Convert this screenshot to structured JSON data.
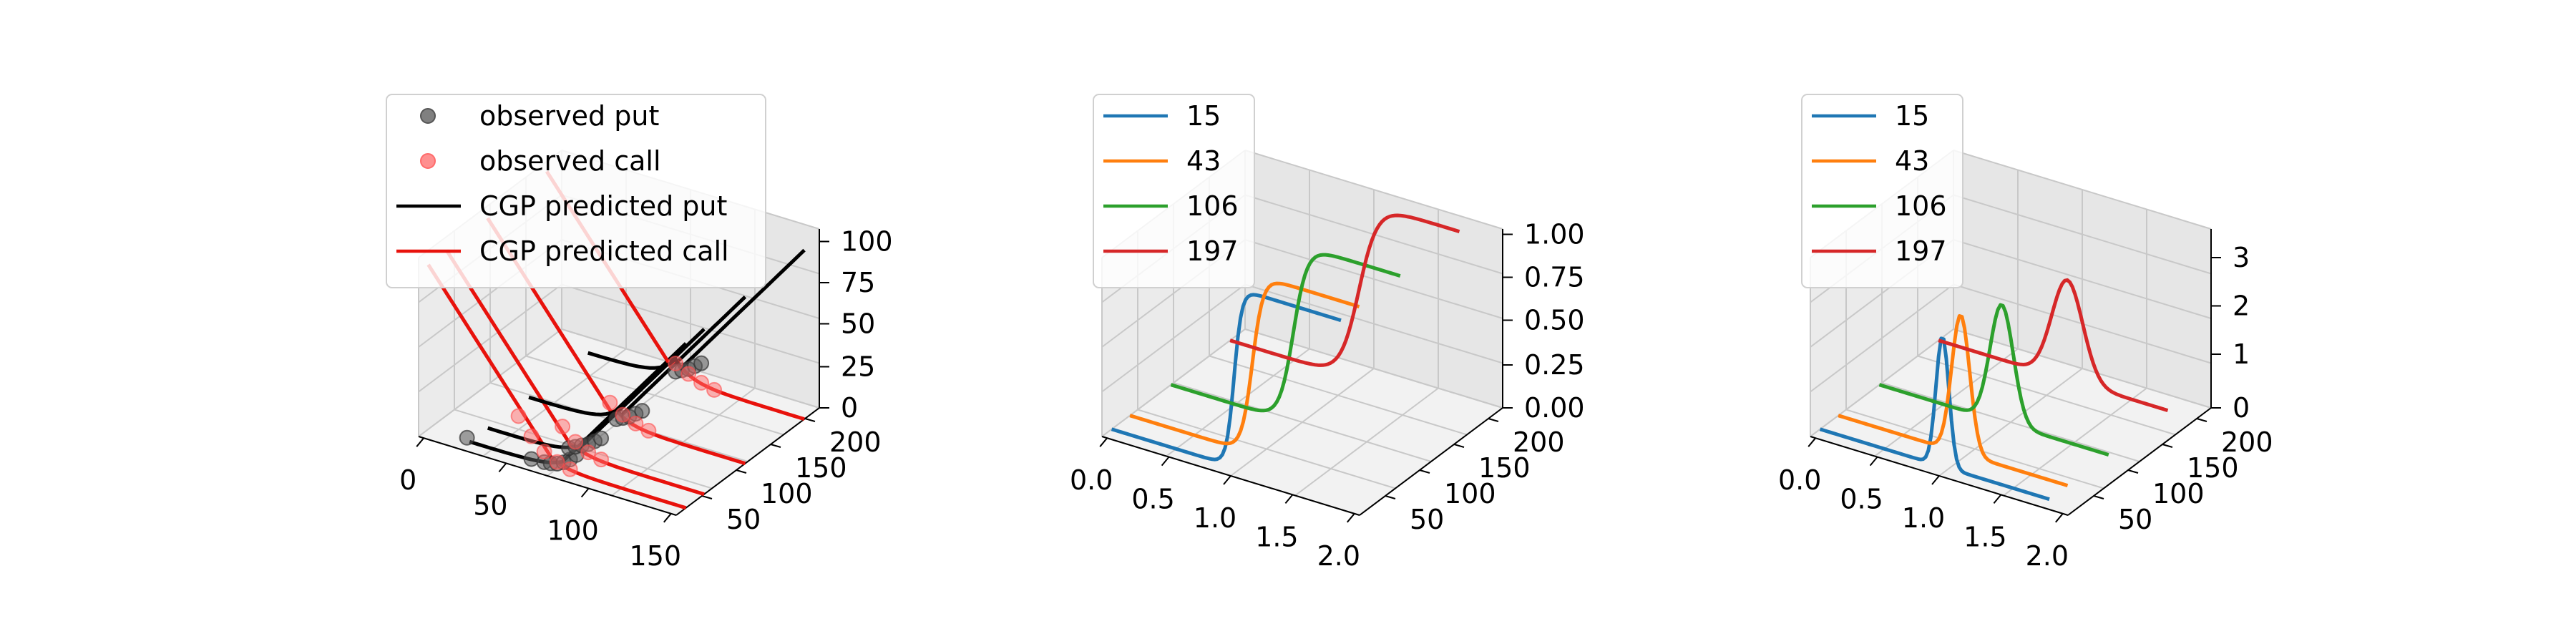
{
  "chart_data": [
    {
      "type": "line-3d",
      "x_ticks": [
        "0",
        "50",
        "100",
        "150"
      ],
      "y_ticks": [
        "50",
        "100",
        "150",
        "200"
      ],
      "z_ticks": [
        "0",
        "25",
        "50",
        "75",
        "100"
      ],
      "xlim": [
        0,
        200
      ],
      "ylim": [
        0,
        220
      ],
      "zlim": [
        0,
        110
      ],
      "legend": {
        "placement": "upper-left",
        "entries": [
          {
            "label": "observed put",
            "kind": "marker",
            "color": "#555555"
          },
          {
            "label": "observed call",
            "kind": "marker",
            "color": "#ff6b6b"
          },
          {
            "label": "CGP predicted put",
            "kind": "line",
            "color": "#000000"
          },
          {
            "label": "CGP predicted call",
            "kind": "line",
            "color": "#e8120c"
          }
        ]
      },
      "maturities": [
        15,
        43,
        106,
        197
      ],
      "put_points": [
        {
          "maturity": 15,
          "strikes": [
            30,
            80,
            90,
            95,
            100,
            105,
            110,
            115
          ],
          "values": [
            2,
            1,
            1.5,
            2,
            3,
            5,
            8,
            12
          ]
        },
        {
          "maturity": 43,
          "strikes": [
            95,
            100,
            105,
            110,
            115,
            120
          ],
          "values": [
            3,
            5,
            7,
            9,
            12,
            15
          ]
        },
        {
          "maturity": 106,
          "strikes": [
            100,
            105,
            110,
            115,
            120
          ],
          "values": [
            3,
            5,
            7,
            10,
            13
          ]
        },
        {
          "maturity": 197,
          "strikes": [
            100,
            105,
            110,
            115,
            120
          ],
          "values": [
            5,
            7,
            9,
            12,
            15
          ]
        }
      ],
      "call_points": [
        {
          "maturity": 15,
          "strikes": [
            70,
            80,
            90,
            100,
            110
          ],
          "values": [
            25,
            15,
            8,
            4,
            2
          ]
        },
        {
          "maturity": 43,
          "strikes": [
            90,
            100,
            110,
            120
          ],
          "values": [
            15,
            8,
            4,
            2
          ]
        },
        {
          "maturity": 106,
          "strikes": [
            95,
            105,
            115,
            125
          ],
          "values": [
            12,
            7,
            4,
            2
          ]
        },
        {
          "maturity": 197,
          "strikes": [
            100,
            110,
            120,
            130
          ],
          "values": [
            10,
            6,
            3,
            1
          ]
        }
      ]
    },
    {
      "type": "line-3d",
      "x_ticks": [
        "0.0",
        "0.5",
        "1.0",
        "1.5",
        "2.0"
      ],
      "y_ticks": [
        "50",
        "100",
        "150",
        "200"
      ],
      "z_ticks": [
        "0.00",
        "0.25",
        "0.50",
        "0.75",
        "1.00"
      ],
      "xlim": [
        0,
        2
      ],
      "ylim": [
        0,
        220
      ],
      "zlim": [
        0,
        1
      ],
      "legend": {
        "placement": "upper-left",
        "entries": [
          {
            "label": "15",
            "color": "#1f77b4"
          },
          {
            "label": "43",
            "color": "#ff7f0e"
          },
          {
            "label": "106",
            "color": "#2ca02c"
          },
          {
            "label": "197",
            "color": "#d62728"
          }
        ]
      },
      "series": [
        {
          "name": "15",
          "maturity": 15,
          "color": "#1f77b4",
          "center": 0.95,
          "width": 0.05
        },
        {
          "name": "43",
          "maturity": 43,
          "color": "#ff7f0e",
          "center": 0.95,
          "width": 0.07
        },
        {
          "name": "106",
          "maturity": 106,
          "color": "#2ca02c",
          "center": 0.95,
          "width": 0.09
        },
        {
          "name": "197",
          "maturity": 197,
          "color": "#d62728",
          "center": 1.0,
          "width": 0.12
        }
      ]
    },
    {
      "type": "line-3d",
      "x_ticks": [
        "0.0",
        "0.5",
        "1.0",
        "1.5",
        "2.0"
      ],
      "y_ticks": [
        "50",
        "100",
        "150",
        "200"
      ],
      "z_ticks": [
        "0",
        "1",
        "2",
        "3"
      ],
      "xlim": [
        0,
        2
      ],
      "ylim": [
        0,
        220
      ],
      "zlim": [
        0,
        3.5
      ],
      "legend": {
        "placement": "upper-left",
        "entries": [
          {
            "label": "15",
            "color": "#1f77b4"
          },
          {
            "label": "43",
            "color": "#ff7f0e"
          },
          {
            "label": "106",
            "color": "#2ca02c"
          },
          {
            "label": "197",
            "color": "#d62728"
          }
        ]
      },
      "series": [
        {
          "name": "15",
          "maturity": 15,
          "color": "#1f77b4",
          "center": 0.95,
          "width": 0.05,
          "peak": 2.55
        },
        {
          "name": "43",
          "maturity": 43,
          "color": "#ff7f0e",
          "center": 0.95,
          "width": 0.07,
          "peak": 2.7
        },
        {
          "name": "106",
          "maturity": 106,
          "color": "#2ca02c",
          "center": 0.95,
          "width": 0.09,
          "peak": 2.3
        },
        {
          "name": "197",
          "maturity": 197,
          "color": "#d62728",
          "center": 1.0,
          "width": 0.12,
          "peak": 1.95
        }
      ]
    }
  ]
}
